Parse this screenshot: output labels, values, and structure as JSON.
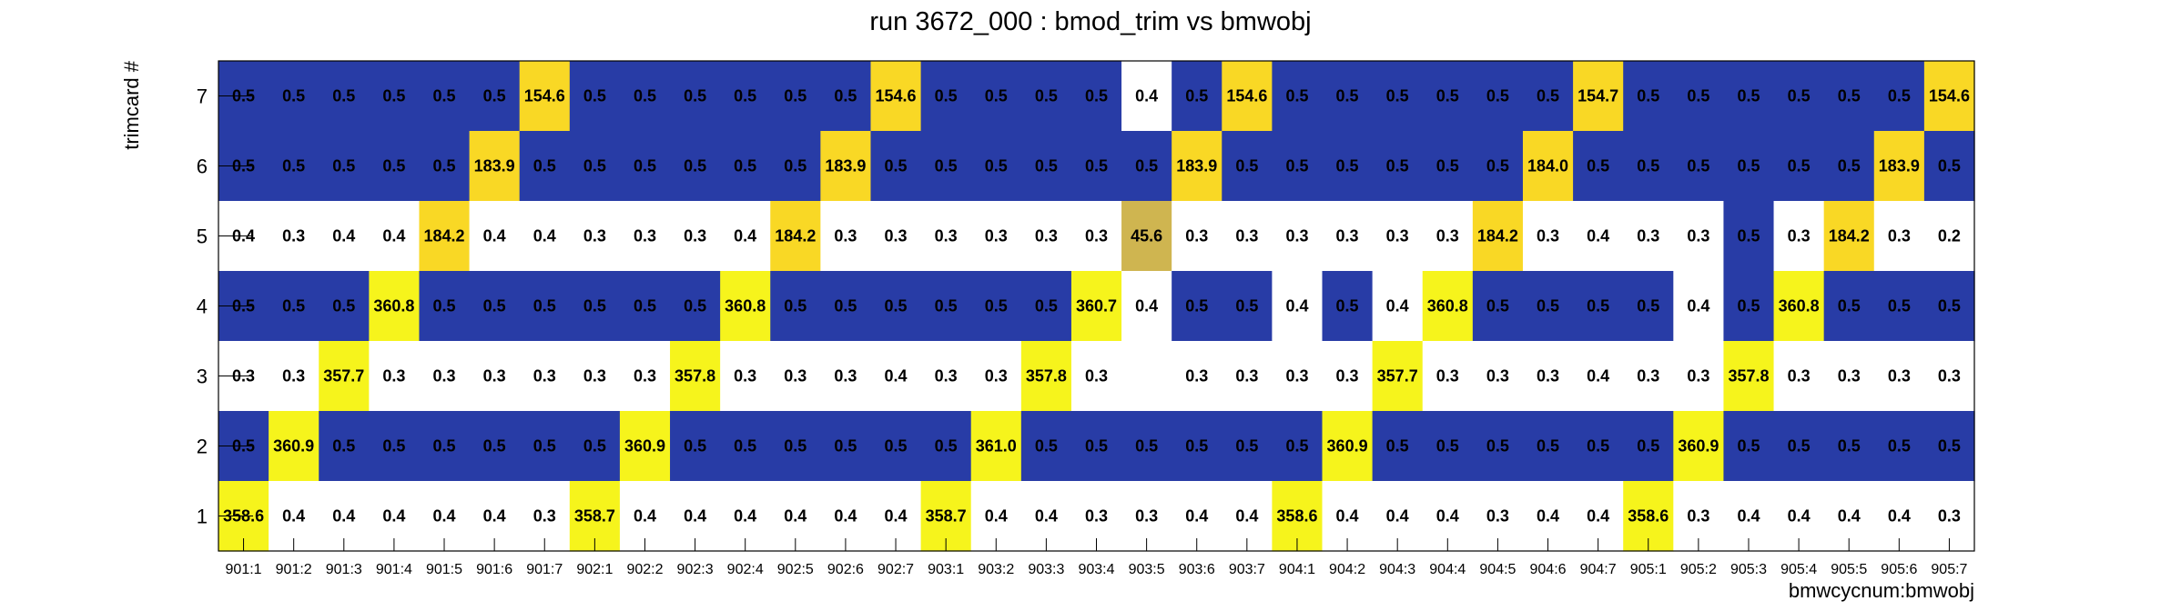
{
  "chart_data": {
    "type": "heatmap",
    "title": "run 3672_000 : bmod_trim vs bmwobj",
    "xlabel": "bmwcycnum:bmwobj",
    "ylabel": "trimcard #",
    "x_categories": [
      "901:1",
      "901:2",
      "901:3",
      "901:4",
      "901:5",
      "901:6",
      "901:7",
      "902:1",
      "902:2",
      "902:3",
      "902:4",
      "902:5",
      "902:6",
      "902:7",
      "903:1",
      "903:2",
      "903:3",
      "903:4",
      "903:5",
      "903:6",
      "903:7",
      "904:1",
      "904:2",
      "904:3",
      "904:4",
      "904:5",
      "904:6",
      "904:7",
      "905:1",
      "905:2",
      "905:3",
      "905:4",
      "905:5",
      "905:6",
      "905:7"
    ],
    "y_categories": [
      "1",
      "2",
      "3",
      "4",
      "5",
      "6",
      "7"
    ],
    "grid": false,
    "colors": {
      "navy": "#283ca6",
      "white": "#ffffff",
      "yellow": "#f6f41c",
      "gold": "#f9d825",
      "olive": "#cfb550"
    },
    "rows": [
      {
        "y": "7",
        "values": [
          "0.5",
          "0.5",
          "0.5",
          "0.5",
          "0.5",
          "0.5",
          "154.6",
          "0.5",
          "0.5",
          "0.5",
          "0.5",
          "0.5",
          "0.5",
          "154.6",
          "0.5",
          "0.5",
          "0.5",
          "0.5",
          "0.4",
          "0.5",
          "154.6",
          "0.5",
          "0.5",
          "0.5",
          "0.5",
          "0.5",
          "0.5",
          "154.7",
          "0.5",
          "0.5",
          "0.5",
          "0.5",
          "0.5",
          "0.5",
          "154.6"
        ]
      },
      {
        "y": "6",
        "values": [
          "0.5",
          "0.5",
          "0.5",
          "0.5",
          "0.5",
          "183.9",
          "0.5",
          "0.5",
          "0.5",
          "0.5",
          "0.5",
          "0.5",
          "183.9",
          "0.5",
          "0.5",
          "0.5",
          "0.5",
          "0.5",
          "0.5",
          "183.9",
          "0.5",
          "0.5",
          "0.5",
          "0.5",
          "0.5",
          "0.5",
          "184.0",
          "0.5",
          "0.5",
          "0.5",
          "0.5",
          "0.5",
          "0.5",
          "183.9",
          "0.5"
        ]
      },
      {
        "y": "5",
        "values": [
          "0.4",
          "0.3",
          "0.4",
          "0.4",
          "184.2",
          "0.4",
          "0.4",
          "0.3",
          "0.3",
          "0.3",
          "0.4",
          "184.2",
          "0.3",
          "0.3",
          "0.3",
          "0.3",
          "0.3",
          "0.3",
          "45.6",
          "0.3",
          "0.3",
          "0.3",
          "0.3",
          "0.3",
          "0.3",
          "184.2",
          "0.3",
          "0.4",
          "0.3",
          "0.3",
          "0.5",
          "0.3",
          "184.2",
          "0.3",
          "0.2"
        ]
      },
      {
        "y": "4",
        "values": [
          "0.5",
          "0.5",
          "0.5",
          "360.8",
          "0.5",
          "0.5",
          "0.5",
          "0.5",
          "0.5",
          "0.5",
          "360.8",
          "0.5",
          "0.5",
          "0.5",
          "0.5",
          "0.5",
          "0.5",
          "360.7",
          "0.4",
          "0.5",
          "0.5",
          "0.4",
          "0.5",
          "0.4",
          "360.8",
          "0.5",
          "0.5",
          "0.5",
          "0.5",
          "0.4",
          "0.5",
          "360.8",
          "0.5",
          "0.5",
          "0.5"
        ]
      },
      {
        "y": "3",
        "values": [
          "0.3",
          "0.3",
          "357.7",
          "0.3",
          "0.3",
          "0.3",
          "0.3",
          "0.3",
          "0.3",
          "357.8",
          "0.3",
          "0.3",
          "0.3",
          "0.4",
          "0.3",
          "0.3",
          "357.8",
          "0.3",
          "",
          "0.3",
          "0.3",
          "0.3",
          "0.3",
          "357.7",
          "0.3",
          "0.3",
          "0.3",
          "0.4",
          "0.3",
          "0.3",
          "357.8",
          "0.3",
          "0.3",
          "0.3",
          "0.3"
        ]
      },
      {
        "y": "2",
        "values": [
          "0.5",
          "360.9",
          "0.5",
          "0.5",
          "0.5",
          "0.5",
          "0.5",
          "0.5",
          "360.9",
          "0.5",
          "0.5",
          "0.5",
          "0.5",
          "0.5",
          "0.5",
          "361.0",
          "0.5",
          "0.5",
          "0.5",
          "0.5",
          "0.5",
          "0.5",
          "360.9",
          "0.5",
          "0.5",
          "0.5",
          "0.5",
          "0.5",
          "0.5",
          "360.9",
          "0.5",
          "0.5",
          "0.5",
          "0.5",
          "0.5"
        ]
      },
      {
        "y": "1",
        "values": [
          "358.6",
          "0.4",
          "0.4",
          "0.4",
          "0.4",
          "0.4",
          "0.3",
          "358.7",
          "0.4",
          "0.4",
          "0.4",
          "0.4",
          "0.4",
          "0.4",
          "358.7",
          "0.4",
          "0.4",
          "0.3",
          "0.3",
          "0.4",
          "0.4",
          "358.6",
          "0.4",
          "0.4",
          "0.4",
          "0.3",
          "0.4",
          "0.4",
          "358.6",
          "0.3",
          "0.4",
          "0.4",
          "0.4",
          "0.4",
          "0.3"
        ]
      }
    ]
  }
}
